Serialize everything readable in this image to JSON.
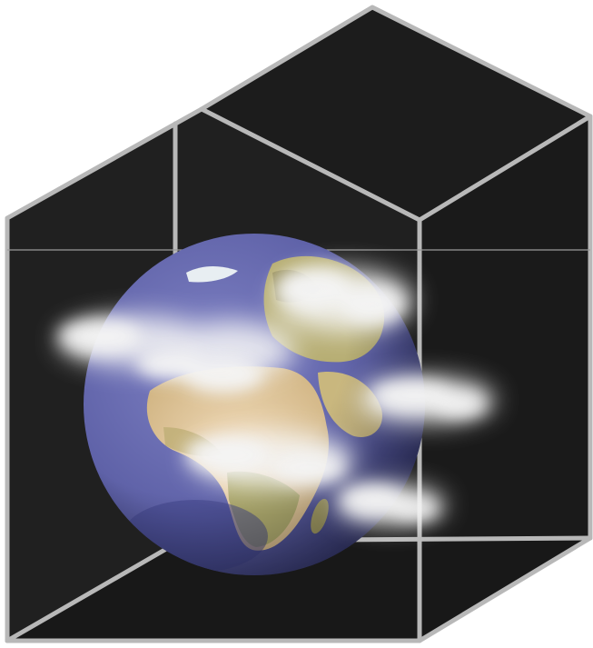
{
  "colors": {
    "background": "#ffffff",
    "box_face": "#1e1e1e",
    "box_face_light": "#262626",
    "box_face_dark": "#141414",
    "edge": "#b8b8b8",
    "ocean": "#5f62a8",
    "ocean_dark": "#3a3d80",
    "land_desert": "#e6cba0",
    "land_green": "#b4ad72",
    "land_dark": "#8b8457",
    "ice": "#e8eef2",
    "cloud": "#f2f2f2"
  },
  "scene": {
    "subject": "earth-globe-icon",
    "container": "wireframe-cube-icon",
    "effect": "cloud-icon"
  }
}
